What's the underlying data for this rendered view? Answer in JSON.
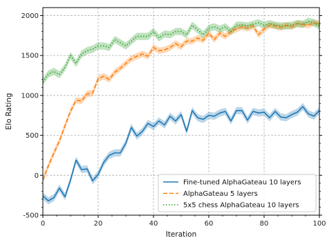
{
  "chart_data": {
    "type": "line",
    "title": "",
    "xlabel": "Iteration",
    "ylabel": "Elo Rating",
    "xlim": [
      0,
      100
    ],
    "ylim": [
      -500,
      2100
    ],
    "xticks": [
      0,
      20,
      40,
      60,
      80,
      100
    ],
    "yticks": [
      -500,
      0,
      500,
      1000,
      1500,
      2000
    ],
    "grid": true,
    "legend_position": "bottom-right",
    "series": [
      {
        "name": "Fine-tuned AlphaGateau 10 layers",
        "color": "#1f77b4",
        "style": "solid",
        "band": 45,
        "x": [
          0,
          2,
          4,
          6,
          8,
          10,
          12,
          14,
          16,
          18,
          20,
          22,
          24,
          26,
          28,
          30,
          32,
          34,
          36,
          38,
          40,
          42,
          44,
          46,
          48,
          50,
          52,
          54,
          56,
          58,
          60,
          62,
          64,
          66,
          68,
          70,
          72,
          74,
          76,
          78,
          80,
          82,
          84,
          86,
          88,
          90,
          92,
          94,
          96,
          98,
          100
        ],
        "y": [
          -260,
          -320,
          -280,
          -160,
          -270,
          -60,
          190,
          70,
          80,
          -70,
          10,
          160,
          250,
          280,
          280,
          400,
          600,
          490,
          550,
          650,
          610,
          680,
          630,
          740,
          680,
          760,
          550,
          810,
          720,
          700,
          750,
          740,
          780,
          800,
          680,
          810,
          810,
          690,
          800,
          780,
          790,
          720,
          800,
          730,
          720,
          760,
          790,
          860,
          770,
          740,
          810
        ]
      },
      {
        "name": "AlphaGateau 5 layers",
        "color": "#ff7f0e",
        "style": "dashed",
        "band": 40,
        "x": [
          0,
          2,
          4,
          6,
          8,
          10,
          12,
          14,
          16,
          18,
          20,
          22,
          24,
          26,
          28,
          30,
          32,
          34,
          36,
          38,
          40,
          42,
          44,
          46,
          48,
          50,
          52,
          54,
          56,
          58,
          60,
          62,
          64,
          66,
          68,
          70,
          72,
          74,
          76,
          78,
          80,
          82,
          84,
          86,
          88,
          90,
          92,
          94,
          96,
          98,
          100
        ],
        "y": [
          -60,
          120,
          280,
          430,
          620,
          800,
          940,
          930,
          1020,
          1030,
          1210,
          1240,
          1200,
          1290,
          1340,
          1400,
          1460,
          1490,
          1520,
          1490,
          1600,
          1560,
          1570,
          1600,
          1650,
          1610,
          1680,
          1680,
          1720,
          1690,
          1780,
          1700,
          1780,
          1740,
          1800,
          1830,
          1860,
          1840,
          1870,
          1760,
          1830,
          1880,
          1870,
          1850,
          1880,
          1860,
          1900,
          1890,
          1880,
          1910,
          1900
        ]
      },
      {
        "name": "5x5 chess AlphaGateau 10 layers",
        "color": "#2ca02c",
        "style": "dotted",
        "band": 45,
        "x": [
          0,
          2,
          4,
          6,
          8,
          10,
          12,
          14,
          16,
          18,
          20,
          22,
          24,
          26,
          28,
          30,
          32,
          34,
          36,
          38,
          40,
          42,
          44,
          46,
          48,
          50,
          52,
          54,
          56,
          58,
          60,
          62,
          64,
          66,
          68,
          70,
          72,
          74,
          76,
          78,
          80,
          82,
          84,
          86,
          88,
          90,
          92,
          94,
          96,
          98,
          100
        ],
        "y": [
          1170,
          1270,
          1300,
          1260,
          1350,
          1500,
          1400,
          1520,
          1560,
          1580,
          1620,
          1620,
          1600,
          1700,
          1660,
          1620,
          1680,
          1740,
          1740,
          1740,
          1800,
          1720,
          1770,
          1760,
          1800,
          1800,
          1760,
          1880,
          1820,
          1760,
          1840,
          1860,
          1830,
          1860,
          1800,
          1880,
          1880,
          1870,
          1890,
          1910,
          1880,
          1900,
          1880,
          1870,
          1870,
          1880,
          1900,
          1890,
          1930,
          1910,
          1870
        ]
      }
    ]
  }
}
